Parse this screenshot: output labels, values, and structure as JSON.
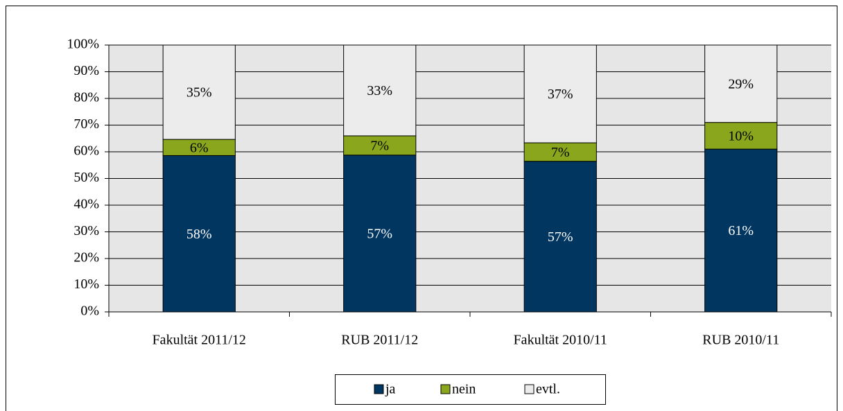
{
  "chart_data": {
    "type": "bar",
    "stacking": "percent",
    "categories": [
      "Fakultät 2011/12",
      "RUB 2011/12",
      "Fakultät 2010/11",
      "RUB 2010/11"
    ],
    "series": [
      {
        "name": "ja",
        "color": "#003660",
        "values": [
          58,
          57,
          57,
          61
        ],
        "value_labels": [
          "58%",
          "57%",
          "57%",
          "61%"
        ]
      },
      {
        "name": "nein",
        "color": "#8aa61c",
        "values": [
          6,
          7,
          7,
          10
        ],
        "value_labels": [
          "6%",
          "7%",
          "7%",
          "10%"
        ]
      },
      {
        "name": "evtl.",
        "color": "#ececec",
        "values": [
          35,
          33,
          37,
          29
        ],
        "value_labels": [
          "35%",
          "33%",
          "37%",
          "29%"
        ]
      }
    ],
    "ylim": [
      0,
      100
    ],
    "yticks": [
      {
        "value": 0,
        "label": "0%"
      },
      {
        "value": 10,
        "label": "10%"
      },
      {
        "value": 20,
        "label": "20%"
      },
      {
        "value": 30,
        "label": "30%"
      },
      {
        "value": 40,
        "label": "40%"
      },
      {
        "value": 50,
        "label": "50%"
      },
      {
        "value": 60,
        "label": "60%"
      },
      {
        "value": 70,
        "label": "70%"
      },
      {
        "value": 80,
        "label": "80%"
      },
      {
        "value": 90,
        "label": "90%"
      },
      {
        "value": 100,
        "label": "100%"
      }
    ],
    "grid": true,
    "legend": "bottom"
  }
}
